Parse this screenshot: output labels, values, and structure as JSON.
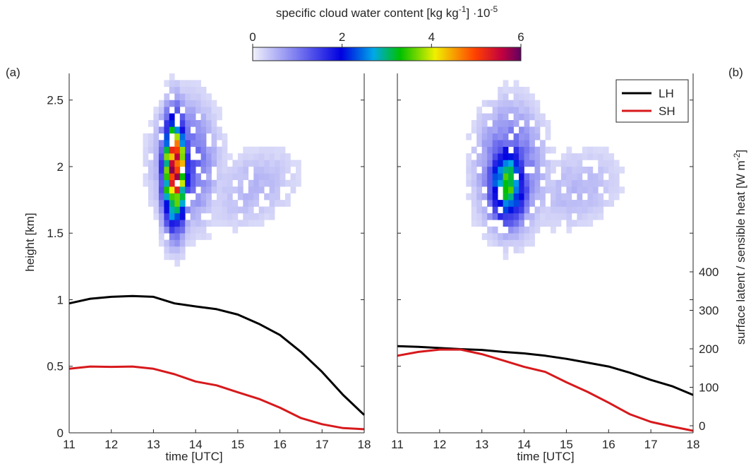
{
  "chart_data": {
    "type": "heatmap",
    "colorbar": {
      "title": "specific cloud water content [kg kg",
      "title_sup": "-1",
      "title_suffix": "] ·10",
      "title_suffix_sup": "-5",
      "ticks": [
        "0",
        "2",
        "4",
        "6"
      ],
      "range": [
        0,
        6
      ]
    },
    "time_axis": {
      "label": "time [UTC]",
      "ticks": [
        "11",
        "12",
        "13",
        "14",
        "15",
        "16",
        "17",
        "18"
      ],
      "range": [
        11,
        18
      ]
    },
    "height_axis": {
      "label": "height [km]",
      "ticks": [
        "0",
        "0.5",
        "1",
        "1.5",
        "2",
        "2.5"
      ],
      "range": [
        0,
        2.7
      ]
    },
    "flux_axis": {
      "label": "surface latent / sensible heat [W m",
      "label_sup": "-2",
      "label_suffix": "]",
      "ticks": [
        "0",
        "100",
        "200",
        "300",
        "400"
      ]
    },
    "legend": {
      "placement": "top-right of panel (b)",
      "entries": [
        {
          "label": "LH",
          "color": "#000000"
        },
        {
          "label": "SH",
          "color": "#d7191c"
        }
      ]
    },
    "panels": [
      {
        "tag": "(a)",
        "cloud_water_1e-5": {
          "cells": [
            {
              "t": 13.2,
              "h": 2.62,
              "q": 0.6
            },
            {
              "t": 13.2,
              "h": 2.52,
              "q": 0.8
            },
            {
              "t": 13.45,
              "h": 2.52,
              "q": 0.3
            },
            {
              "t": 13.7,
              "h": 2.52,
              "q": 0.3
            },
            {
              "t": 14.45,
              "h": 2.52,
              "q": 0.3
            },
            {
              "t": 12.95,
              "h": 2.42,
              "q": 0.5
            },
            {
              "t": 13.2,
              "h": 2.42,
              "q": 1.2
            },
            {
              "t": 13.45,
              "h": 2.42,
              "q": 0.8
            },
            {
              "t": 13.7,
              "h": 2.42,
              "q": 0.6
            },
            {
              "t": 14.2,
              "h": 2.42,
              "q": 0.4
            },
            {
              "t": 14.45,
              "h": 2.42,
              "q": 0.3
            },
            {
              "t": 12.95,
              "h": 2.32,
              "q": 0.8
            },
            {
              "t": 13.2,
              "h": 1.5,
              "q": 1.5
            },
            {
              "t": 13.45,
              "h": 2.32,
              "q": 1.6
            },
            {
              "t": 13.7,
              "h": 2.32,
              "q": 0.9
            },
            {
              "t": 14.2,
              "h": 2.32,
              "q": 0.5
            },
            {
              "t": 13.2,
              "h": 2.32,
              "q": 1.5
            }
          ],
          "peak_q": 5.8,
          "peak_time": 13.45,
          "peak_height": 1.95
        },
        "LH": {
          "t": [
            11,
            11.5,
            12,
            12.5,
            13,
            13.5,
            14,
            14.5,
            15,
            15.5,
            16,
            16.5,
            17,
            17.5,
            18
          ],
          "y": [
            318,
            330,
            335,
            337,
            335,
            318,
            310,
            303,
            289,
            265,
            236,
            192,
            140,
            80,
            28
          ]
        },
        "SH": {
          "t": [
            11,
            11.5,
            12,
            12.5,
            13,
            13.5,
            14,
            14.5,
            15,
            15.5,
            16,
            16.5,
            17,
            17.5,
            18
          ],
          "y": [
            148,
            154,
            153,
            154,
            148,
            134,
            115,
            105,
            87,
            70,
            47,
            20,
            4,
            -6,
            -9
          ]
        }
      },
      {
        "tag": "(b)",
        "cloud_water_1e-5": {
          "peak_q": 3.4,
          "peak_time": 13.3,
          "peak_height": 1.85
        },
        "LH": {
          "t": [
            11,
            11.5,
            12,
            12.5,
            13,
            13.5,
            14,
            14.5,
            15,
            15.5,
            16,
            16.5,
            17,
            17.5,
            18
          ],
          "y": [
            207,
            205,
            202,
            199,
            197,
            192,
            188,
            182,
            174,
            164,
            154,
            138,
            119,
            103,
            80
          ]
        },
        "SH": {
          "t": [
            11,
            11.5,
            12,
            12.5,
            13,
            13.5,
            14,
            14.5,
            15,
            15.5,
            16,
            16.5,
            17,
            17.5,
            18
          ],
          "y": [
            182,
            192,
            198,
            198,
            186,
            170,
            153,
            140,
            113,
            88,
            60,
            30,
            10,
            -2,
            -13
          ]
        }
      }
    ]
  }
}
